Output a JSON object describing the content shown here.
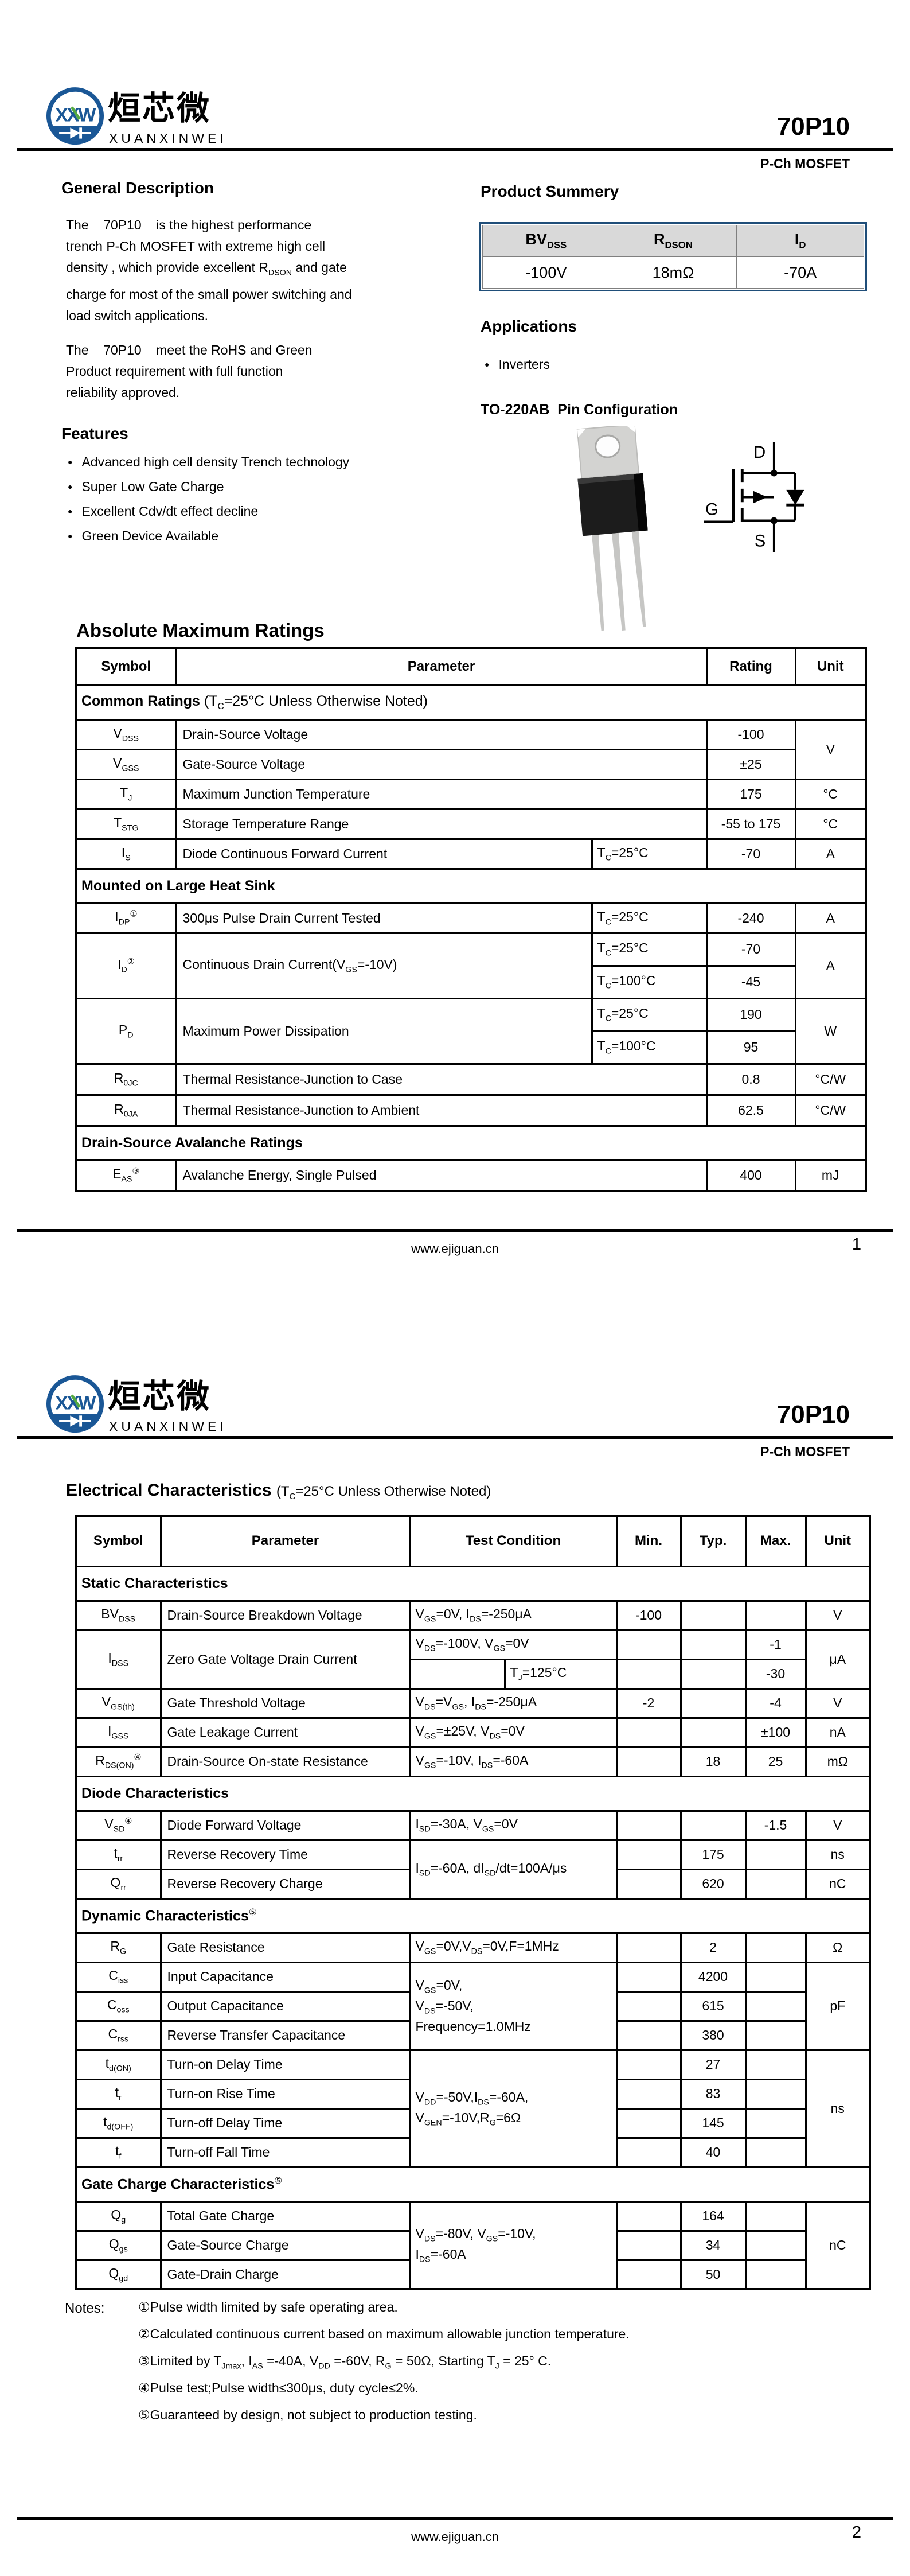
{
  "colors": {
    "logo_blue": "#1a5796",
    "logo_green": "#54a93f",
    "summary_border": "#1f4e79",
    "summary_header_bg": "#d9d9d9",
    "table_border": "#000000"
  },
  "header": {
    "monogram": "XXW",
    "brand_zh": "烜芯微",
    "brand_en": "XUANXINWEI",
    "part_number": "70P10",
    "device_type": "P-Ch MOSFET"
  },
  "footer": {
    "url": "www.ejiguan.cn",
    "page1_number": "1",
    "page2_number": "2"
  },
  "page1": {
    "general_description": {
      "title": "General Description",
      "para1_html": "The    70P10    is the highest performance<br>trench P-Ch MOSFET with extreme high cell<br>density , which provide excellent R<sub>DSON</sub> and gate<br>charge  for most of the small power switching and<br>load  switch applications.",
      "para2_html": "The    70P10    meet the RoHS and Green<br>Product  requirement with full function<br>reliability approved."
    },
    "product_summary": {
      "title": "Product Summery",
      "col1_html": "BV<sub>DSS</sub>",
      "col2_html": "R<sub>DSON</sub>",
      "col3_html": "I<sub>D</sub>",
      "val1": "-100V",
      "val2": "18mΩ",
      "val3": "-70A"
    },
    "applications": {
      "title": "Applications",
      "item1": "Inverters"
    },
    "features": {
      "title": "Features",
      "item1": "Advanced high cell density Trench technology",
      "item2": "Super Low Gate Charge",
      "item3": "Excellent Cdv/dt effect decline",
      "item4": "Green Device Available"
    },
    "pin_config": {
      "title": "TO-220AB  Pin Configuration",
      "drain_label": "D",
      "gate_label": "G",
      "source_label": "S"
    },
    "abs_max": {
      "title": "Absolute Maximum Ratings",
      "headers": {
        "symbol": "Symbol",
        "parameter": "Parameter",
        "rating": "Rating",
        "unit": "Unit"
      },
      "sections": {
        "common_html": "<b>Common Ratings</b> (T<sub>C</sub>=25°C Unless Otherwise Noted)",
        "heatsink_html": "<b>Mounted on Large Heat Sink</b>",
        "avalanche_html": "<b>Drain-Source Avalanche Ratings</b>"
      },
      "rows": {
        "vdss": {
          "sym_html": "V<sub>DSS</sub>",
          "param": "Drain-Source Voltage",
          "rating": "-100",
          "unit": "V"
        },
        "vgss": {
          "sym_html": "V<sub>GSS</sub>",
          "param": "Gate-Source Voltage",
          "rating": "±25"
        },
        "tj": {
          "sym_html": "T<sub>J</sub>",
          "param": "Maximum Junction Temperature",
          "rating": "175",
          "unit": "°C"
        },
        "tstg": {
          "sym_html": "T<sub>STG</sub>",
          "param": "Storage Temperature Range",
          "rating": "-55 to 175",
          "unit": "°C"
        },
        "is": {
          "sym_html": "I<sub>S</sub>",
          "param": "Diode Continuous Forward Current",
          "cond_html": "T<sub>C</sub>=25°C",
          "rating": "-70",
          "unit": "A"
        },
        "idp": {
          "sym_html": "I<sub>DP</sub><sup>①</sup>",
          "param": "300μs Pulse Drain Current Tested",
          "cond_html": "T<sub>C</sub>=25°C",
          "rating": "-240",
          "unit": "A"
        },
        "id": {
          "sym_html": "I<sub>D</sub><sup>②</sup>",
          "param_html": "Continuous Drain Current(V<sub>GS</sub>=-10V)",
          "cond1_html": "T<sub>C</sub>=25°C",
          "rating1": "-70",
          "cond2_html": "T<sub>C</sub>=100°C",
          "rating2": "-45",
          "unit": "A"
        },
        "pd": {
          "sym_html": "P<sub>D</sub>",
          "param": "Maximum Power Dissipation",
          "cond1_html": "T<sub>C</sub>=25°C",
          "rating1": "190",
          "cond2_html": "T<sub>C</sub>=100°C",
          "rating2": "95",
          "unit": "W"
        },
        "rthjc": {
          "sym_html": "R<sub>θJC</sub>",
          "param": "Thermal Resistance-Junction to Case",
          "rating": "0.8",
          "unit": "°C/W"
        },
        "rthja": {
          "sym_html": "R<sub>θJA</sub>",
          "param": "Thermal Resistance-Junction to Ambient",
          "rating": "62.5",
          "unit": "°C/W"
        },
        "eas": {
          "sym_html": "E<sub>AS</sub><sup>③</sup>",
          "param": "Avalanche Energy, Single Pulsed",
          "rating": "400",
          "unit": "mJ"
        }
      }
    }
  },
  "page2": {
    "elec": {
      "title": "Electrical Characteristics",
      "subtitle_html": "(T<sub>C</sub>=25°C Unless Otherwise Noted)",
      "headers": {
        "symbol": "Symbol",
        "parameter": "Parameter",
        "test_condition": "Test Condition",
        "min": "Min.",
        "typ": "Typ.",
        "max": "Max.",
        "unit": "Unit"
      },
      "sections": {
        "static_html": "<b>Static Characteristics</b>",
        "diode_html": "<b>Diode Characteristics</b>",
        "dynamic_html": "<b>Dynamic Characteristics</b><sup>⑤</sup>",
        "gate_charge_html": "<b>Gate Charge Characteristics</b><sup>⑤</sup>"
      },
      "rows": {
        "bvdss": {
          "sym_html": "BV<sub>DSS</sub>",
          "param": "Drain-Source Breakdown Voltage",
          "cond_html": "V<sub>GS</sub>=0V, I<sub>DS</sub>=-250μA",
          "min": "-100",
          "unit": "V"
        },
        "idss": {
          "sym_html": "I<sub>DSS</sub>",
          "param": "Zero Gate Voltage Drain Current",
          "cond1_html": "V<sub>DS</sub>=-100V, V<sub>GS</sub>=0V",
          "max1": "-1",
          "cond2_html": "T<sub>J</sub>=125°C",
          "max2": "-30",
          "unit": "μA"
        },
        "vgsth": {
          "sym_html": "V<sub>GS(th)</sub>",
          "param": "Gate Threshold Voltage",
          "cond_html": "V<sub>DS</sub>=V<sub>GS</sub>, I<sub>DS</sub>=-250μA",
          "min": "-2",
          "max": "-4",
          "unit": "V"
        },
        "igss": {
          "sym_html": "I<sub>GSS</sub>",
          "param": "Gate Leakage Current",
          "cond_html": "V<sub>GS</sub>=±25V, V<sub>DS</sub>=0V",
          "max": "±100",
          "unit": "nA"
        },
        "rdson": {
          "sym_html": "R<sub>DS(ON)</sub><sup>④</sup>",
          "param": "Drain-Source On-state Resistance",
          "cond_html": "V<sub>GS</sub>=-10V, I<sub>DS</sub>=-60A",
          "typ": "18",
          "max": "25",
          "unit": "mΩ"
        },
        "vsd": {
          "sym_html": "V<sub>SD</sub><sup>④</sup>",
          "param": "Diode Forward Voltage",
          "cond_html": "I<sub>SD</sub>=-30A, V<sub>GS</sub>=0V",
          "max": "-1.5",
          "unit": "V"
        },
        "trr": {
          "sym_html": "t<sub>rr</sub>",
          "param": "Reverse Recovery Time",
          "cond_html": "I<sub>SD</sub>=-60A, dI<sub>SD</sub>/dt=100A/μs",
          "typ": "175",
          "unit": "ns"
        },
        "qrr": {
          "sym_html": "Q<sub>rr</sub>",
          "param": "Reverse Recovery Charge",
          "typ": "620",
          "unit": "nC"
        },
        "rg": {
          "sym_html": "R<sub>G</sub>",
          "param": "Gate Resistance",
          "cond_html": "V<sub>GS</sub>=0V,V<sub>DS</sub>=0V,F=1MHz",
          "typ": "2",
          "unit": "Ω"
        },
        "ciss": {
          "sym_html": "C<sub>iss</sub>",
          "param": "Input Capacitance",
          "cond_html": "V<sub>GS</sub>=0V,<br>V<sub>DS</sub>=-50V,<br>Frequency=1.0MHz",
          "typ": "4200",
          "unit": "pF"
        },
        "coss": {
          "sym_html": "C<sub>oss</sub>",
          "param": "Output Capacitance",
          "typ": "615"
        },
        "crss": {
          "sym_html": "C<sub>rss</sub>",
          "param": "Reverse Transfer Capacitance",
          "typ": "380"
        },
        "tdon": {
          "sym_html": "t<sub>d(ON)</sub>",
          "param": "Turn-on Delay Time",
          "cond_html": "V<sub>DD</sub>=-50V,I<sub>DS</sub>=-60A,<br>V<sub>GEN</sub>=-10V,R<sub>G</sub>=6Ω",
          "typ": "27",
          "unit": "ns"
        },
        "tr": {
          "sym_html": "t<sub>r</sub>",
          "param": "Turn-on Rise Time",
          "typ": "83"
        },
        "tdoff": {
          "sym_html": "t<sub>d(OFF)</sub>",
          "param": "Turn-off Delay Time",
          "typ": "145"
        },
        "tf": {
          "sym_html": "t<sub>f</sub>",
          "param": "Turn-off Fall Time",
          "typ": "40"
        },
        "qg": {
          "sym_html": "Q<sub>g</sub>",
          "param": "Total Gate Charge",
          "cond_html": "V<sub>DS</sub>=-80V, V<sub>GS</sub>=-10V,<br>I<sub>DS</sub>=-60A",
          "typ": "164",
          "unit": "nC"
        },
        "qgs": {
          "sym_html": "Q<sub>gs</sub>",
          "param": "Gate-Source Charge",
          "typ": "34"
        },
        "qgd": {
          "sym_html": "Q<sub>gd</sub>",
          "param": "Gate-Drain Charge",
          "typ": "50"
        }
      }
    },
    "notes": {
      "label": "Notes:",
      "n1_html": "①Pulse width limited by safe operating area.",
      "n2_html": "②Calculated continuous current based on maximum allowable  junction temperature.",
      "n3_html": "③Limited by T<sub>Jmax</sub>, I<sub>AS</sub> =-40A, V<sub>DD</sub> =-60V, R<sub>G</sub> = 50Ω, Starting T<sub>J</sub> = 25°  C.",
      "n4_html": "④Pulse test;Pulse width≤300μs, duty cycle≤2%.",
      "n5_html": "⑤Guaranteed by design, not subject to production testing."
    }
  }
}
